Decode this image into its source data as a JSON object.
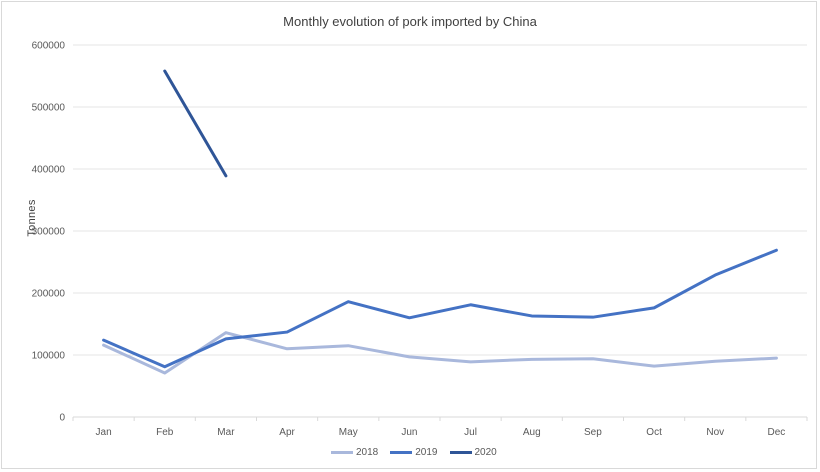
{
  "chart_data": {
    "type": "line",
    "title": "Monthly evolution of pork imported by China",
    "xlabel": "",
    "ylabel": "Tonnes",
    "categories": [
      "Jan",
      "Feb",
      "Mar",
      "Apr",
      "May",
      "Jun",
      "Jul",
      "Aug",
      "Sep",
      "Oct",
      "Nov",
      "Dec"
    ],
    "y_ticks": [
      "0",
      "100000",
      "200000",
      "300000",
      "400000",
      "500000",
      "600000"
    ],
    "ylim": [
      0,
      600000
    ],
    "grid": true,
    "legend_position": "bottom",
    "series": [
      {
        "name": "2018",
        "color": "#A9B8DC",
        "values": [
          116000,
          71000,
          136000,
          110000,
          115000,
          97000,
          89000,
          93000,
          94000,
          82000,
          90000,
          95000
        ]
      },
      {
        "name": "2019",
        "color": "#4472C4",
        "values": [
          124000,
          81000,
          126000,
          137000,
          186000,
          160000,
          181000,
          163000,
          161000,
          176000,
          229000,
          269000
        ]
      },
      {
        "name": "2020",
        "color": "#2F5597",
        "values": [
          null,
          558000,
          389000,
          null,
          null,
          null,
          null,
          null,
          null,
          null,
          null,
          null
        ]
      }
    ]
  }
}
